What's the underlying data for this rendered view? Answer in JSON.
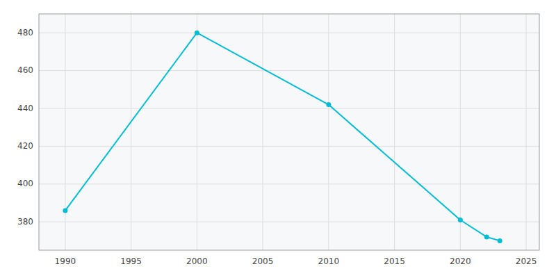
{
  "chart_data": {
    "type": "line",
    "x": [
      1990,
      2000,
      2010,
      2020,
      2022,
      2023
    ],
    "values": [
      386,
      480,
      442,
      381,
      372,
      370
    ],
    "color": "#00bcd4",
    "marker": "circle",
    "xlim": [
      1988,
      2026
    ],
    "ylim": [
      365,
      490
    ],
    "xticks": [
      1990,
      1995,
      2000,
      2005,
      2010,
      2015,
      2020,
      2025
    ],
    "yticks": [
      380,
      400,
      420,
      440,
      460,
      480
    ],
    "grid": true
  }
}
